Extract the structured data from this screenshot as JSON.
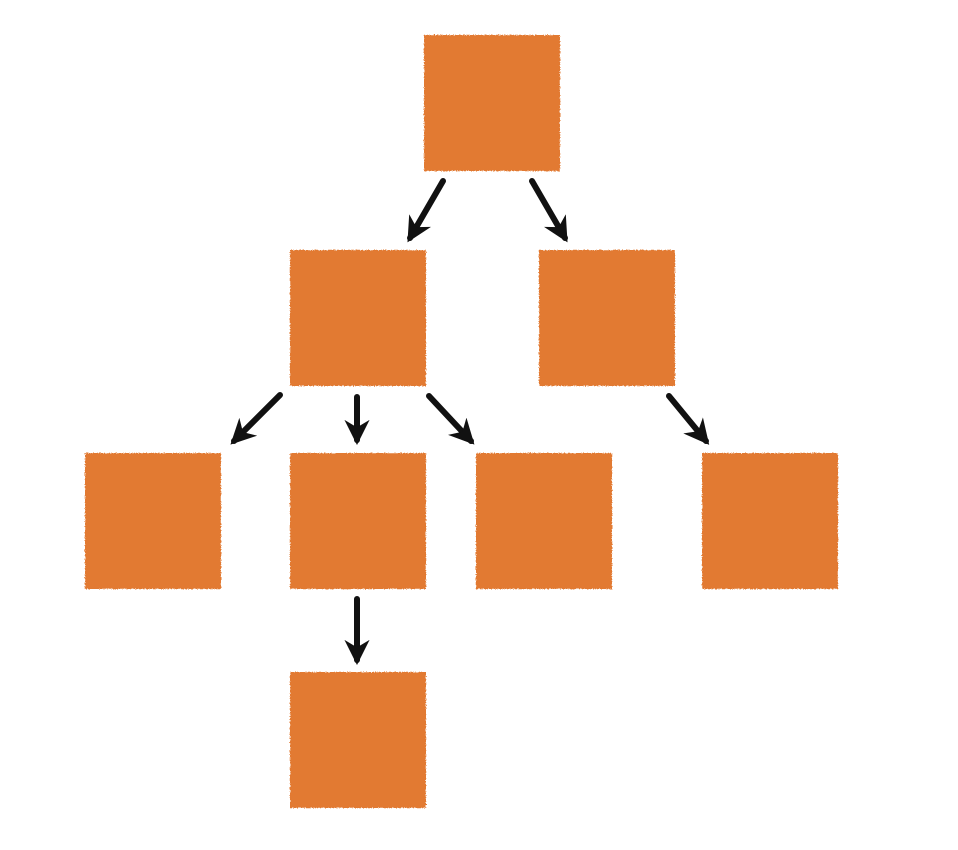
{
  "colors": {
    "node_fill": "#E27A31",
    "arrow": "#111111",
    "background": "#FFFFFF"
  },
  "tree": {
    "nodes": [
      {
        "id": "root",
        "parent": null
      },
      {
        "id": "child-left",
        "parent": "root"
      },
      {
        "id": "child-right",
        "parent": "root"
      },
      {
        "id": "grandchild-1",
        "parent": "child-left"
      },
      {
        "id": "grandchild-2",
        "parent": "child-left"
      },
      {
        "id": "grandchild-3",
        "parent": "child-left"
      },
      {
        "id": "grandchild-4",
        "parent": "child-right"
      },
      {
        "id": "great-grandchild-1",
        "parent": "grandchild-2"
      }
    ],
    "edges": [
      {
        "from": "root",
        "to": "child-left"
      },
      {
        "from": "root",
        "to": "child-right"
      },
      {
        "from": "child-left",
        "to": "grandchild-1"
      },
      {
        "from": "child-left",
        "to": "grandchild-2"
      },
      {
        "from": "child-left",
        "to": "grandchild-3"
      },
      {
        "from": "child-right",
        "to": "grandchild-4"
      },
      {
        "from": "grandchild-2",
        "to": "great-grandchild-1"
      }
    ]
  }
}
